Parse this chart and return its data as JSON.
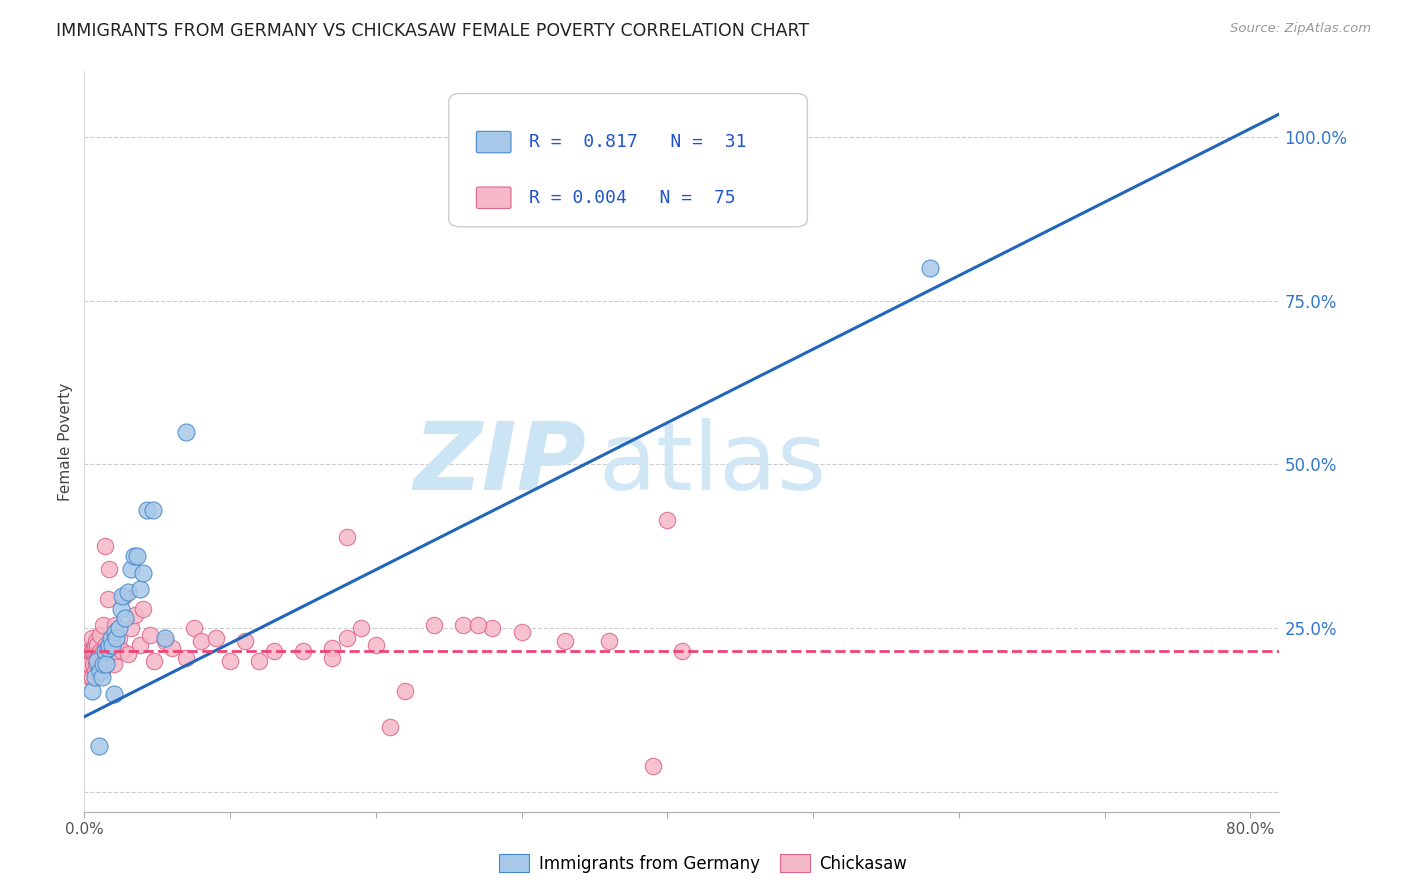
{
  "title": "IMMIGRANTS FROM GERMANY VS CHICKASAW FEMALE POVERTY CORRELATION CHART",
  "source": "Source: ZipAtlas.com",
  "ylabel": "Female Poverty",
  "xlim": [
    0.0,
    0.82
  ],
  "ylim": [
    -0.03,
    1.1
  ],
  "xticks": [
    0.0,
    0.1,
    0.2,
    0.3,
    0.4,
    0.5,
    0.6,
    0.7,
    0.8
  ],
  "ytick_positions": [
    0.0,
    0.25,
    0.5,
    0.75,
    1.0
  ],
  "ytick_labels": [
    "",
    "25.0%",
    "50.0%",
    "75.0%",
    "100.0%"
  ],
  "grid_color": "#c8c8c8",
  "background_color": "#ffffff",
  "blue_color": "#a8c8e8",
  "blue_marker_edge": "#4488cc",
  "blue_line_color": "#2266bb",
  "pink_color": "#f5b8c8",
  "pink_marker_edge": "#dd6688",
  "pink_line_color": "#ee4477",
  "legend_R1": "0.817",
  "legend_N1": "31",
  "legend_R2": "0.004",
  "legend_N2": "75",
  "series1_label": "Immigrants from Germany",
  "series2_label": "Chickasaw",
  "blue_line_x0": 0.0,
  "blue_line_y0": 0.115,
  "blue_line_x1": 0.82,
  "blue_line_y1": 1.035,
  "pink_line_y": 0.215,
  "blue_points_x": [
    0.005,
    0.007,
    0.009,
    0.01,
    0.011,
    0.012,
    0.013,
    0.014,
    0.015,
    0.016,
    0.017,
    0.018,
    0.019,
    0.02,
    0.021,
    0.022,
    0.024,
    0.025,
    0.026,
    0.028,
    0.03,
    0.032,
    0.034,
    0.036,
    0.038,
    0.04,
    0.043,
    0.047,
    0.055,
    0.07,
    0.58
  ],
  "blue_points_y": [
    0.155,
    0.175,
    0.2,
    0.07,
    0.185,
    0.175,
    0.195,
    0.215,
    0.195,
    0.22,
    0.225,
    0.235,
    0.225,
    0.15,
    0.245,
    0.235,
    0.25,
    0.28,
    0.3,
    0.265,
    0.305,
    0.34,
    0.36,
    0.36,
    0.31,
    0.335,
    0.43,
    0.43,
    0.235,
    0.55,
    0.8
  ],
  "pink_points_x": [
    0.001,
    0.002,
    0.003,
    0.003,
    0.004,
    0.004,
    0.005,
    0.005,
    0.005,
    0.006,
    0.006,
    0.007,
    0.007,
    0.007,
    0.008,
    0.008,
    0.009,
    0.009,
    0.01,
    0.01,
    0.011,
    0.011,
    0.012,
    0.012,
    0.013,
    0.013,
    0.014,
    0.015,
    0.015,
    0.016,
    0.017,
    0.018,
    0.019,
    0.02,
    0.021,
    0.022,
    0.024,
    0.026,
    0.027,
    0.03,
    0.032,
    0.035,
    0.038,
    0.04,
    0.045,
    0.048,
    0.055,
    0.06,
    0.07,
    0.075,
    0.08,
    0.09,
    0.1,
    0.11,
    0.12,
    0.13,
    0.15,
    0.17,
    0.18,
    0.2,
    0.21,
    0.22,
    0.24,
    0.26,
    0.28,
    0.3,
    0.33,
    0.36,
    0.39,
    0.41,
    0.4,
    0.27,
    0.19,
    0.18,
    0.17
  ],
  "pink_points_y": [
    0.2,
    0.195,
    0.195,
    0.215,
    0.175,
    0.215,
    0.175,
    0.215,
    0.235,
    0.195,
    0.215,
    0.185,
    0.215,
    0.225,
    0.195,
    0.23,
    0.205,
    0.225,
    0.19,
    0.21,
    0.215,
    0.24,
    0.185,
    0.2,
    0.215,
    0.255,
    0.375,
    0.205,
    0.225,
    0.295,
    0.34,
    0.215,
    0.235,
    0.195,
    0.255,
    0.215,
    0.235,
    0.215,
    0.3,
    0.21,
    0.25,
    0.27,
    0.225,
    0.28,
    0.24,
    0.2,
    0.23,
    0.22,
    0.205,
    0.25,
    0.23,
    0.235,
    0.2,
    0.23,
    0.2,
    0.215,
    0.215,
    0.22,
    0.235,
    0.225,
    0.1,
    0.155,
    0.255,
    0.255,
    0.25,
    0.245,
    0.23,
    0.23,
    0.04,
    0.215,
    0.415,
    0.255,
    0.25,
    0.39,
    0.205
  ]
}
